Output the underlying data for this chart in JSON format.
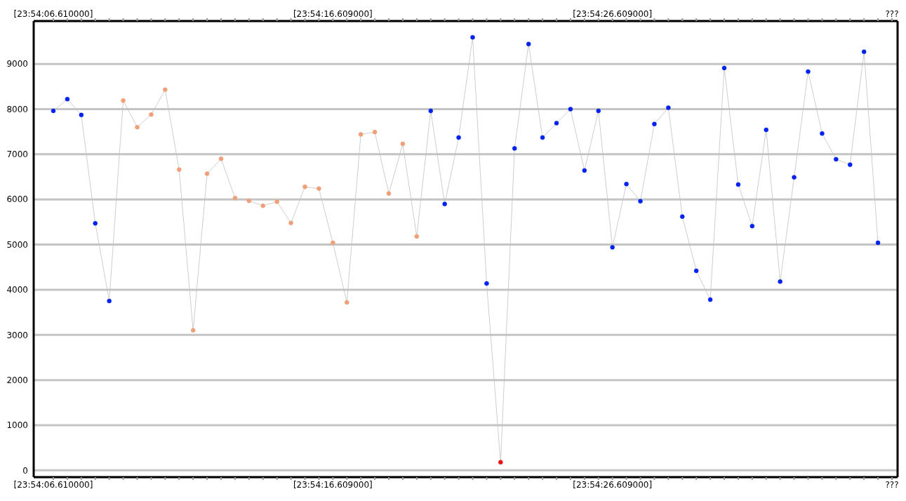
{
  "chart_data": {
    "type": "line",
    "categories": [
      "[23:54:06.610000]",
      null,
      null,
      null,
      null,
      null,
      null,
      null,
      null,
      null,
      null,
      null,
      null,
      null,
      null,
      null,
      null,
      null,
      null,
      null,
      "[23:54:16.609000]",
      null,
      null,
      null,
      null,
      null,
      null,
      null,
      null,
      null,
      null,
      null,
      null,
      null,
      null,
      null,
      null,
      null,
      null,
      null,
      "[23:54:26.609000]",
      null,
      null,
      null,
      null,
      null,
      null,
      null,
      null,
      null,
      null,
      null,
      null,
      null,
      null,
      null,
      null,
      null,
      null,
      null,
      "???"
    ],
    "series": [
      {
        "color": "#c0c0c0",
        "values": [
          7960,
          8220,
          7870,
          5470,
          3750,
          8190,
          7600,
          7880,
          8430,
          6660,
          3100,
          6570,
          6900,
          6030,
          5970,
          5860,
          5950,
          5480,
          6280,
          6240,
          5040,
          3720,
          7440,
          7490,
          6130,
          7230,
          5180,
          7960,
          5900,
          7370,
          9590,
          4140,
          180,
          7130,
          9440,
          7370,
          7690,
          8000,
          6640,
          7960,
          4940,
          6340,
          5960,
          7670,
          8030,
          5620,
          4420,
          3780,
          8910,
          6330,
          5410,
          7540,
          4180,
          6490,
          8830,
          7460,
          6890,
          6770,
          9270,
          5040,
          null
        ],
        "colors": [
          "#0022ee",
          "#0022ee",
          "#0022ee",
          "#0022ee",
          "#0022ee",
          "#f0a078",
          "#f0a078",
          "#f0a078",
          "#f0a078",
          "#f0a078",
          "#f0a078",
          "#f0a078",
          "#f0a078",
          "#f0a078",
          "#f0a078",
          "#f0a078",
          "#f0a078",
          "#f0a078",
          "#f0a078",
          "#f0a078",
          "#f0a078",
          "#f0a078",
          "#f0a078",
          "#f0a078",
          "#f0a078",
          "#f0a078",
          "#f0a078",
          "#0022ee",
          "#0022ee",
          "#0022ee",
          "#0022ee",
          "#0022ee",
          "#ee1111",
          "#0022ee",
          "#0022ee",
          "#0022ee",
          "#0022ee",
          "#0022ee",
          "#0022ee",
          "#0022ee",
          "#0022ee",
          "#0022ee",
          "#0022ee",
          "#0022ee",
          "#0022ee",
          "#0022ee",
          "#0022ee",
          "#0022ee",
          "#0022ee",
          "#0022ee",
          "#0022ee",
          "#0022ee",
          "#0022ee",
          "#0022ee",
          "#0022ee",
          "#0022ee",
          "#0022ee",
          "#0022ee",
          "#0022ee",
          "#0022ee",
          null
        ]
      }
    ],
    "ylim": [
      -150,
      9950
    ],
    "yticks": [
      0,
      1000,
      2000,
      3000,
      4000,
      5000,
      6000,
      7000,
      8000,
      9000
    ],
    "grid": "y",
    "marker": "circle",
    "line_style": "solid"
  }
}
